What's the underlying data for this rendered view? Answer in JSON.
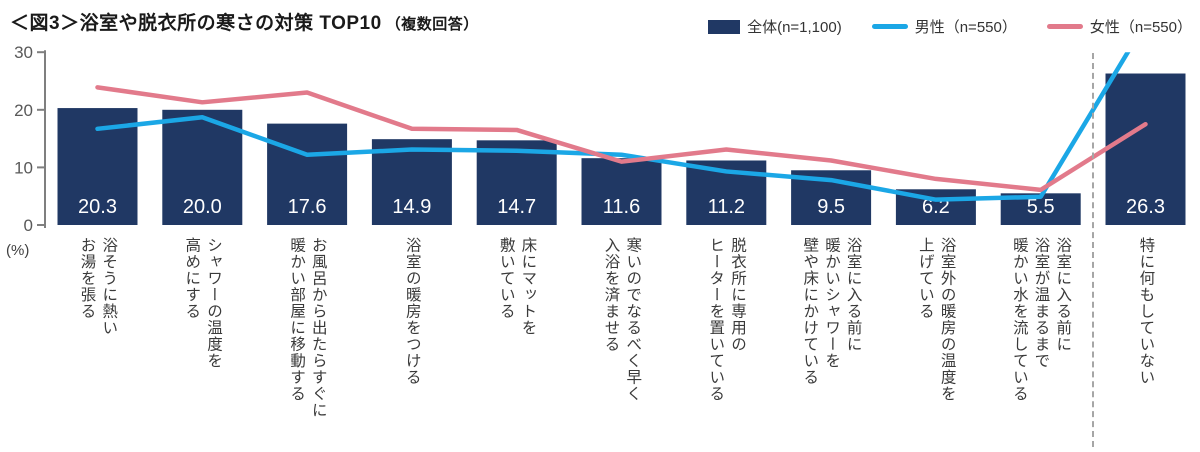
{
  "title": {
    "main": "＜図3＞浴室や脱衣所の寒さの対策 TOP10",
    "suffix": "（複数回答）"
  },
  "legend": {
    "items": [
      {
        "label": "全体(n=1,100)",
        "type": "bar",
        "color": "#203864"
      },
      {
        "label": "男性（n=550）",
        "type": "line",
        "color": "#1BA7E6"
      },
      {
        "label": "女性（n=550）",
        "type": "line",
        "color": "#E27A8B"
      }
    ]
  },
  "axis": {
    "unit_label": "(%)",
    "ticks": [
      0,
      10,
      20,
      30
    ],
    "max": 30
  },
  "chart_data": {
    "type": "bar",
    "subtype": "combo-bar-line",
    "title": "＜図3＞浴室や脱衣所の寒さの対策 TOP10（複数回答）",
    "ylabel": "(%)",
    "ylim": [
      0,
      30
    ],
    "yticks": [
      0,
      10,
      20,
      30
    ],
    "grid": false,
    "legend_position": "top-right",
    "categories": [
      "浴そうに熱い\nお湯を張る",
      "シャワーの温度を\n高めにする",
      "お風呂から出たらすぐに\n暖かい部屋に移動する",
      "浴室の暖房をつける",
      "床にマットを\n敷いている",
      "寒いのでなるべく早く\n入浴を済ませる",
      "脱衣所に専用の\nヒーターを置いている",
      "浴室に入る前に\n暖かいシャワーを\n壁や床にかけている",
      "浴室外の暖房の温度を\n上げている",
      "浴室に入る前に\n浴室が温まるまで\n暖かい水を流している",
      "特に何もしていない"
    ],
    "bar_series": {
      "name": "全体(n=1,100)",
      "color": "#203864",
      "values": [
        20.3,
        20.0,
        17.6,
        14.9,
        14.7,
        11.6,
        11.2,
        9.5,
        6.2,
        5.5,
        26.3
      ],
      "value_labels": [
        "20.3",
        "20.0",
        "17.6",
        "14.9",
        "14.7",
        "11.6",
        "11.2",
        "9.5",
        "6.2",
        "5.5",
        "26.3"
      ]
    },
    "line_series": [
      {
        "name": "男性（n=550）",
        "color": "#1BA7E6",
        "values": [
          16.7,
          18.7,
          12.2,
          13.1,
          12.9,
          12.2,
          9.3,
          7.8,
          4.4,
          4.9,
          35.1
        ],
        "clipped_at_ymax": true
      },
      {
        "name": "女性（n=550）",
        "color": "#E27A8B",
        "values": [
          23.9,
          21.3,
          23.0,
          16.7,
          16.5,
          11.0,
          13.1,
          11.2,
          8.0,
          6.1,
          17.5
        ],
        "clipped_at_ymax": false
      }
    ],
    "separator_after_category_index": 9
  }
}
